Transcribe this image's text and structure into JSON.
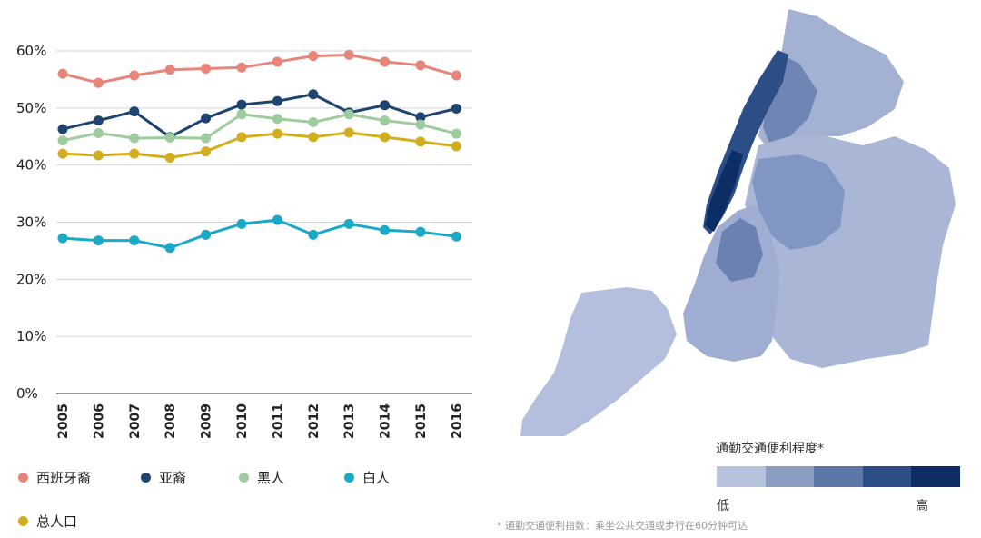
{
  "chart_data": {
    "type": "line",
    "categories": [
      "2005",
      "2006",
      "2007",
      "2008",
      "2009",
      "2010",
      "2011",
      "2012",
      "2013",
      "2014",
      "2015",
      "2016"
    ],
    "y_ticks": [
      "0%",
      "10%",
      "20%",
      "30%",
      "40%",
      "50%",
      "60%"
    ],
    "ylim": [
      0,
      60
    ],
    "grid": true,
    "series": [
      {
        "name": "西班牙裔",
        "color": "#e8857a",
        "values": [
          56,
          54.4,
          55.7,
          56.7,
          56.9,
          57.1,
          58.1,
          59.1,
          59.3,
          58.1,
          57.5,
          55.7
        ]
      },
      {
        "name": "亚裔",
        "color": "#1f4470",
        "values": [
          46.3,
          47.8,
          49.4,
          44.9,
          48.2,
          50.6,
          51.2,
          52.4,
          49.2,
          50.5,
          48.4,
          49.9
        ]
      },
      {
        "name": "黑人",
        "color": "#9fcc9f",
        "values": [
          44.3,
          45.6,
          44.7,
          44.8,
          44.7,
          48.9,
          48.1,
          47.5,
          48.9,
          47.8,
          47.1,
          45.5
        ]
      },
      {
        "name": "白人",
        "color": "#1aaac8",
        "values": [
          27.2,
          26.8,
          26.8,
          25.5,
          27.8,
          29.7,
          30.4,
          27.8,
          29.7,
          28.6,
          28.3,
          27.5
        ]
      },
      {
        "name": "总人口",
        "color": "#d2ae1e",
        "values": [
          42,
          41.7,
          42,
          41.3,
          42.4,
          44.9,
          45.5,
          44.9,
          45.7,
          44.9,
          44.1,
          43.3
        ]
      }
    ]
  },
  "legend": {
    "hispanic": "西班牙裔",
    "asian": "亚裔",
    "black": "黑人",
    "white": "白人",
    "total": "总人口"
  },
  "map_scale": {
    "title": "通勤交通便利程度*",
    "low": "低",
    "high": "高",
    "colors": [
      "#b7c2dc",
      "#8c9dc4",
      "#5d77a7",
      "#2b4e87",
      "#0d2e65"
    ]
  },
  "footnote": "* 通勤交通便利指数：乘坐公共交通或步行在60分钟可达"
}
